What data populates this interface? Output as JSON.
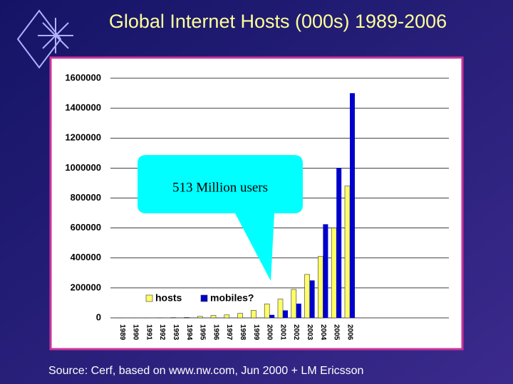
{
  "chart_data": {
    "type": "bar",
    "title": "Global Internet Hosts (000s) 1989-2006",
    "categories": [
      "1989",
      "1990",
      "1991",
      "1992",
      "1993",
      "1994",
      "1995",
      "1996",
      "1997",
      "1998",
      "1999",
      "2000",
      "2001",
      "2002",
      "2003",
      "2004",
      "2005",
      "2006"
    ],
    "series": [
      {
        "name": "hosts",
        "color": "#ffff66",
        "values": [
          160,
          300,
          600,
          1000,
          2000,
          3000,
          10000,
          16000,
          20000,
          30000,
          50000,
          93000,
          125000,
          190000,
          290000,
          410000,
          600000,
          880000
        ]
      },
      {
        "name": "mobiles?",
        "color": "#0000cc",
        "values": [
          0,
          0,
          0,
          0,
          0,
          1000,
          0,
          0,
          0,
          0,
          0,
          20000,
          50000,
          95000,
          250000,
          625000,
          1000000,
          1500000
        ]
      }
    ],
    "ylim": [
      0,
      1600000
    ],
    "yticks": [
      0,
      200000,
      400000,
      600000,
      800000,
      1000000,
      1200000,
      1400000,
      1600000
    ],
    "grid": true,
    "annotation": "513 Million users",
    "source": "Source:  Cerf, based on www.nw.com, Jun 2000 + LM Ericsson"
  }
}
